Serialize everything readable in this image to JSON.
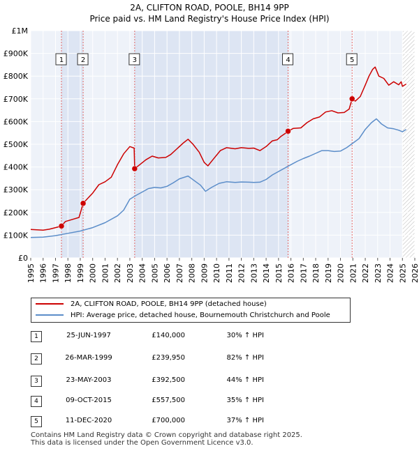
{
  "chart_data": {
    "type": "line",
    "title": "2A, CLIFTON ROAD, POOLE, BH14 9PP",
    "subtitle": "Price paid vs. HM Land Registry's House Price Index (HPI)",
    "ylim": [
      0,
      1000000
    ],
    "xlim": [
      1995,
      2026
    ],
    "y_ticks": [
      {
        "value": 0,
        "label": "£0"
      },
      {
        "value": 100000,
        "label": "£100K"
      },
      {
        "value": 200000,
        "label": "£200K"
      },
      {
        "value": 300000,
        "label": "£300K"
      },
      {
        "value": 400000,
        "label": "£400K"
      },
      {
        "value": 500000,
        "label": "£500K"
      },
      {
        "value": 600000,
        "label": "£600K"
      },
      {
        "value": 700000,
        "label": "£700K"
      },
      {
        "value": 800000,
        "label": "£800K"
      },
      {
        "value": 900000,
        "label": "£900K"
      },
      {
        "value": 1000000,
        "label": "£1M"
      }
    ],
    "x_ticks": [
      1995,
      1996,
      1997,
      1998,
      1999,
      2000,
      2001,
      2002,
      2003,
      2004,
      2005,
      2006,
      2007,
      2008,
      2009,
      2010,
      2011,
      2012,
      2013,
      2014,
      2015,
      2016,
      2017,
      2018,
      2019,
      2020,
      2021,
      2022,
      2023,
      2024,
      2025,
      2026
    ],
    "forecast_start": 2025.0,
    "series": [
      {
        "name": "2A, CLIFTON ROAD, POOLE, BH14 9PP (detached house)",
        "color": "#cc0000",
        "points": [
          [
            1995.0,
            125000
          ],
          [
            1996.0,
            122000
          ],
          [
            1996.5,
            126000
          ],
          [
            1997.0,
            133000
          ],
          [
            1997.48,
            140000
          ],
          [
            1997.8,
            160000
          ],
          [
            1998.3,
            168000
          ],
          [
            1998.9,
            178000
          ],
          [
            1999.23,
            239950
          ],
          [
            1999.6,
            262000
          ],
          [
            2000.0,
            285000
          ],
          [
            2000.5,
            322000
          ],
          [
            2001.0,
            335000
          ],
          [
            2001.5,
            355000
          ],
          [
            2002.0,
            410000
          ],
          [
            2002.5,
            458000
          ],
          [
            2003.0,
            490000
          ],
          [
            2003.35,
            483000
          ],
          [
            2003.39,
            392500
          ],
          [
            2003.8,
            410000
          ],
          [
            2004.3,
            432000
          ],
          [
            2004.8,
            448000
          ],
          [
            2005.3,
            440000
          ],
          [
            2005.9,
            442000
          ],
          [
            2006.3,
            455000
          ],
          [
            2006.8,
            480000
          ],
          [
            2007.3,
            505000
          ],
          [
            2007.7,
            522000
          ],
          [
            2008.1,
            500000
          ],
          [
            2008.6,
            465000
          ],
          [
            2009.0,
            420000
          ],
          [
            2009.3,
            405000
          ],
          [
            2009.7,
            432000
          ],
          [
            2010.3,
            472000
          ],
          [
            2010.8,
            485000
          ],
          [
            2011.5,
            480000
          ],
          [
            2012.0,
            485000
          ],
          [
            2012.6,
            482000
          ],
          [
            2013.0,
            483000
          ],
          [
            2013.5,
            472000
          ],
          [
            2014.0,
            490000
          ],
          [
            2014.5,
            515000
          ],
          [
            2014.9,
            520000
          ],
          [
            2015.2,
            535000
          ],
          [
            2015.6,
            550000
          ],
          [
            2015.77,
            557500
          ],
          [
            2016.2,
            570000
          ],
          [
            2016.8,
            572000
          ],
          [
            2017.3,
            595000
          ],
          [
            2017.8,
            612000
          ],
          [
            2018.3,
            620000
          ],
          [
            2018.8,
            642000
          ],
          [
            2019.3,
            648000
          ],
          [
            2019.8,
            638000
          ],
          [
            2020.3,
            640000
          ],
          [
            2020.7,
            655000
          ],
          [
            2020.94,
            700000
          ],
          [
            2021.2,
            690000
          ],
          [
            2021.6,
            710000
          ],
          [
            2022.0,
            760000
          ],
          [
            2022.3,
            800000
          ],
          [
            2022.6,
            830000
          ],
          [
            2022.8,
            840000
          ],
          [
            2023.1,
            800000
          ],
          [
            2023.5,
            790000
          ],
          [
            2023.9,
            760000
          ],
          [
            2024.3,
            775000
          ],
          [
            2024.7,
            762000
          ],
          [
            2024.9,
            775000
          ],
          [
            2025.0,
            755000
          ],
          [
            2025.3,
            765000
          ]
        ]
      },
      {
        "name": "HPI: Average price, detached house, Bournemouth Christchurch and Poole",
        "color": "#5b8dc9",
        "points": [
          [
            1995.0,
            90000
          ],
          [
            1996.0,
            91000
          ],
          [
            1997.0,
            98000
          ],
          [
            1998.0,
            108000
          ],
          [
            1999.0,
            118000
          ],
          [
            2000.0,
            133000
          ],
          [
            2001.0,
            155000
          ],
          [
            2002.0,
            185000
          ],
          [
            2002.5,
            210000
          ],
          [
            2003.0,
            258000
          ],
          [
            2003.5,
            275000
          ],
          [
            2004.0,
            290000
          ],
          [
            2004.5,
            305000
          ],
          [
            2005.0,
            310000
          ],
          [
            2005.5,
            308000
          ],
          [
            2006.0,
            315000
          ],
          [
            2006.5,
            330000
          ],
          [
            2007.0,
            348000
          ],
          [
            2007.7,
            360000
          ],
          [
            2008.2,
            340000
          ],
          [
            2008.7,
            320000
          ],
          [
            2009.1,
            293000
          ],
          [
            2009.6,
            310000
          ],
          [
            2010.2,
            328000
          ],
          [
            2010.8,
            335000
          ],
          [
            2011.5,
            332000
          ],
          [
            2012.0,
            334000
          ],
          [
            2012.6,
            333000
          ],
          [
            2013.0,
            332000
          ],
          [
            2013.5,
            333000
          ],
          [
            2014.0,
            345000
          ],
          [
            2014.5,
            365000
          ],
          [
            2015.0,
            380000
          ],
          [
            2015.5,
            395000
          ],
          [
            2016.0,
            410000
          ],
          [
            2016.5,
            425000
          ],
          [
            2017.0,
            437000
          ],
          [
            2017.5,
            448000
          ],
          [
            2018.0,
            460000
          ],
          [
            2018.5,
            472000
          ],
          [
            2019.0,
            472000
          ],
          [
            2019.5,
            468000
          ],
          [
            2020.0,
            470000
          ],
          [
            2020.5,
            485000
          ],
          [
            2021.0,
            505000
          ],
          [
            2021.5,
            525000
          ],
          [
            2022.0,
            565000
          ],
          [
            2022.5,
            595000
          ],
          [
            2022.9,
            612000
          ],
          [
            2023.3,
            590000
          ],
          [
            2023.8,
            572000
          ],
          [
            2024.3,
            568000
          ],
          [
            2024.7,
            562000
          ],
          [
            2025.0,
            555000
          ],
          [
            2025.3,
            565000
          ]
        ]
      }
    ],
    "markers": [
      {
        "label": "1",
        "x": 1997.48,
        "y": 140000
      },
      {
        "label": "2",
        "x": 1999.23,
        "y": 239950
      },
      {
        "label": "3",
        "x": 2003.39,
        "y": 392500
      },
      {
        "label": "4",
        "x": 2015.77,
        "y": 557500
      },
      {
        "label": "5",
        "x": 2020.94,
        "y": 700000
      }
    ]
  },
  "legend": {
    "property_label": "2A, CLIFTON ROAD, POOLE, BH14 9PP (detached house)",
    "hpi_label": "HPI: Average price, detached house, Bournemouth Christchurch and Poole"
  },
  "transactions": [
    {
      "num": "1",
      "date": "25-JUN-1997",
      "price": "£140,000",
      "hpi": "30% ↑ HPI"
    },
    {
      "num": "2",
      "date": "26-MAR-1999",
      "price": "£239,950",
      "hpi": "82% ↑ HPI"
    },
    {
      "num": "3",
      "date": "23-MAY-2003",
      "price": "£392,500",
      "hpi": "44% ↑ HPI"
    },
    {
      "num": "4",
      "date": "09-OCT-2015",
      "price": "£557,500",
      "hpi": "35% ↑ HPI"
    },
    {
      "num": "5",
      "date": "11-DEC-2020",
      "price": "£700,000",
      "hpi": "37% ↑ HPI"
    }
  ],
  "footer": {
    "line1": "Contains HM Land Registry data © Crown copyright and database right 2025.",
    "line2": "This data is licensed under the Open Government Licence v3.0."
  }
}
